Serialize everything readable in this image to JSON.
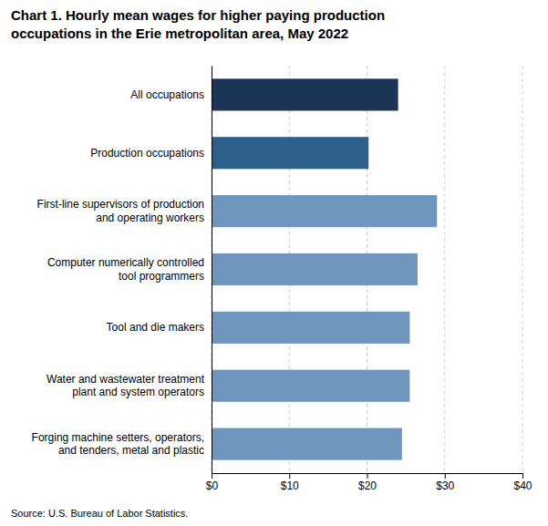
{
  "chart_data": {
    "type": "bar",
    "orientation": "horizontal",
    "title": "Chart 1. Hourly mean wages for higher paying production\noccupations in the Erie metropolitan area, May 2022",
    "categories": [
      "Forging machine setters, operators,\nand tenders, metal and plastic",
      "Water and wastewater treatment\nplant and system operators",
      "Tool and die makers",
      "Computer numerically controlled\ntool programmers",
      "First-line supervisors of production\nand operating workers",
      "Production occupations",
      "All occupations"
    ],
    "values": [
      24.5,
      25.5,
      25.5,
      26.5,
      29.0,
      20.2,
      24.0
    ],
    "colors": [
      "#7096be",
      "#7096be",
      "#7096be",
      "#7096be",
      "#7096be",
      "#2e5f8a",
      "#1c3557"
    ],
    "xlim": [
      0,
      40
    ],
    "xticks": [
      {
        "value": 0,
        "label": "$0"
      },
      {
        "value": 10,
        "label": "$10"
      },
      {
        "value": 20,
        "label": "$20"
      },
      {
        "value": 30,
        "label": "$30"
      },
      {
        "value": 40,
        "label": "$40"
      }
    ],
    "grid": true,
    "annotations": [
      "Source: U.S. Bureau of Labor Statistics."
    ]
  }
}
